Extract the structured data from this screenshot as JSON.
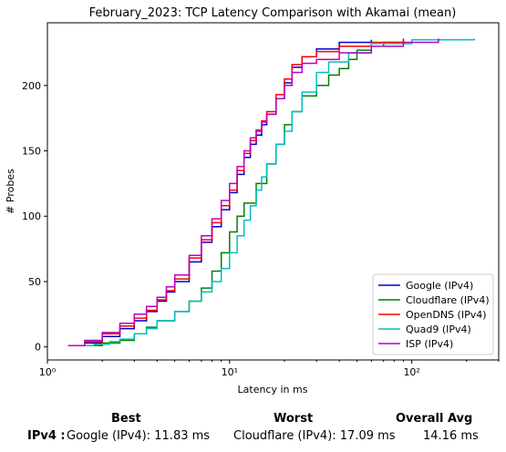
{
  "chart_data": {
    "type": "line",
    "title": "February_2023: TCP Latency Comparison with Akamai (mean)",
    "xlabel": "Latency in ms",
    "ylabel": "# Probes",
    "xscale": "log",
    "xlim": [
      1,
      300
    ],
    "ylim": [
      -10,
      248
    ],
    "xticks": [
      1,
      10,
      100
    ],
    "xtick_labels": [
      "10⁰",
      "10¹",
      "10²"
    ],
    "yticks": [
      0,
      50,
      100,
      150,
      200
    ],
    "grid": false,
    "legend_position": "lower right",
    "series": [
      {
        "name": "Google (IPv4)",
        "color": "#0000cc",
        "points": [
          [
            1.3,
            1
          ],
          [
            1.6,
            3
          ],
          [
            2.0,
            8
          ],
          [
            2.5,
            14
          ],
          [
            3.0,
            20
          ],
          [
            3.5,
            27
          ],
          [
            4.0,
            35
          ],
          [
            4.5,
            42
          ],
          [
            5.0,
            50
          ],
          [
            6.0,
            65
          ],
          [
            7.0,
            80
          ],
          [
            8.0,
            92
          ],
          [
            9.0,
            105
          ],
          [
            10.0,
            118
          ],
          [
            11.0,
            132
          ],
          [
            12.0,
            145
          ],
          [
            13.0,
            155
          ],
          [
            14.0,
            162
          ],
          [
            15.0,
            170
          ],
          [
            16.0,
            178
          ],
          [
            18.0,
            190
          ],
          [
            20.0,
            202
          ],
          [
            22.0,
            214
          ],
          [
            25.0,
            222
          ],
          [
            30.0,
            228
          ],
          [
            40.0,
            233
          ],
          [
            60.0,
            235
          ]
        ]
      },
      {
        "name": "Cloudflare (IPv4)",
        "color": "#008000",
        "points": [
          [
            1.4,
            1
          ],
          [
            2.0,
            3
          ],
          [
            2.5,
            5
          ],
          [
            3.0,
            10
          ],
          [
            3.5,
            15
          ],
          [
            4.0,
            20
          ],
          [
            5.0,
            27
          ],
          [
            6.0,
            35
          ],
          [
            7.0,
            45
          ],
          [
            8.0,
            58
          ],
          [
            9.0,
            72
          ],
          [
            10.0,
            88
          ],
          [
            11.0,
            100
          ],
          [
            12.0,
            110
          ],
          [
            14.0,
            125
          ],
          [
            16.0,
            140
          ],
          [
            18.0,
            155
          ],
          [
            20.0,
            170
          ],
          [
            22.0,
            180
          ],
          [
            25.0,
            192
          ],
          [
            30.0,
            200
          ],
          [
            35.0,
            208
          ],
          [
            40.0,
            213
          ],
          [
            45.0,
            220
          ],
          [
            50.0,
            227
          ],
          [
            60.0,
            230
          ],
          [
            70.0,
            233
          ],
          [
            90.0,
            235
          ]
        ]
      },
      {
        "name": "OpenDNS (IPv4)",
        "color": "#ff0000",
        "points": [
          [
            1.3,
            1
          ],
          [
            1.6,
            4
          ],
          [
            2.0,
            10
          ],
          [
            2.5,
            16
          ],
          [
            3.0,
            22
          ],
          [
            3.5,
            28
          ],
          [
            4.0,
            36
          ],
          [
            4.5,
            43
          ],
          [
            5.0,
            52
          ],
          [
            6.0,
            68
          ],
          [
            7.0,
            82
          ],
          [
            8.0,
            95
          ],
          [
            9.0,
            108
          ],
          [
            10.0,
            120
          ],
          [
            11.0,
            135
          ],
          [
            12.0,
            148
          ],
          [
            13.0,
            158
          ],
          [
            14.0,
            165
          ],
          [
            15.0,
            173
          ],
          [
            16.0,
            180
          ],
          [
            18.0,
            193
          ],
          [
            20.0,
            205
          ],
          [
            22.0,
            216
          ],
          [
            25.0,
            222
          ],
          [
            30.0,
            226
          ],
          [
            40.0,
            230
          ],
          [
            60.0,
            233
          ],
          [
            90.0,
            236
          ]
        ]
      },
      {
        "name": "Quad9 (IPv4)",
        "color": "#00bfbf",
        "points": [
          [
            1.4,
            1
          ],
          [
            1.8,
            2
          ],
          [
            2.2,
            4
          ],
          [
            2.5,
            6
          ],
          [
            3.0,
            10
          ],
          [
            3.5,
            14
          ],
          [
            4.0,
            20
          ],
          [
            5.0,
            27
          ],
          [
            6.0,
            35
          ],
          [
            7.0,
            42
          ],
          [
            8.0,
            50
          ],
          [
            9.0,
            60
          ],
          [
            10.0,
            72
          ],
          [
            11.0,
            85
          ],
          [
            12.0,
            97
          ],
          [
            13.0,
            108
          ],
          [
            14.0,
            120
          ],
          [
            15.0,
            130
          ],
          [
            16.0,
            140
          ],
          [
            18.0,
            155
          ],
          [
            20.0,
            165
          ],
          [
            22.0,
            180
          ],
          [
            25.0,
            195
          ],
          [
            30.0,
            210
          ],
          [
            35.0,
            218
          ],
          [
            45.0,
            225
          ],
          [
            60.0,
            232
          ],
          [
            100.0,
            235
          ],
          [
            220.0,
            236
          ]
        ]
      },
      {
        "name": "ISP (IPv4)",
        "color": "#bf00bf",
        "points": [
          [
            1.3,
            1
          ],
          [
            1.6,
            5
          ],
          [
            2.0,
            11
          ],
          [
            2.5,
            18
          ],
          [
            3.0,
            25
          ],
          [
            3.5,
            31
          ],
          [
            4.0,
            38
          ],
          [
            4.5,
            46
          ],
          [
            5.0,
            55
          ],
          [
            6.0,
            70
          ],
          [
            7.0,
            85
          ],
          [
            8.0,
            98
          ],
          [
            9.0,
            112
          ],
          [
            10.0,
            125
          ],
          [
            11.0,
            138
          ],
          [
            12.0,
            150
          ],
          [
            13.0,
            160
          ],
          [
            14.0,
            166
          ],
          [
            15.0,
            172
          ],
          [
            16.0,
            178
          ],
          [
            18.0,
            190
          ],
          [
            20.0,
            200
          ],
          [
            22.0,
            210
          ],
          [
            25.0,
            217
          ],
          [
            30.0,
            220
          ],
          [
            40.0,
            225
          ],
          [
            60.0,
            230
          ],
          [
            90.0,
            233
          ],
          [
            140.0,
            236
          ]
        ]
      }
    ]
  },
  "summary": {
    "best_header": "Best",
    "worst_header": "Worst",
    "avg_header": "Overall Avg",
    "row_label": "IPv4 :",
    "best_value": "Google (IPv4): 11.83 ms",
    "worst_value": "Cloudflare (IPv4): 17.09 ms",
    "avg_value": "14.16 ms"
  }
}
